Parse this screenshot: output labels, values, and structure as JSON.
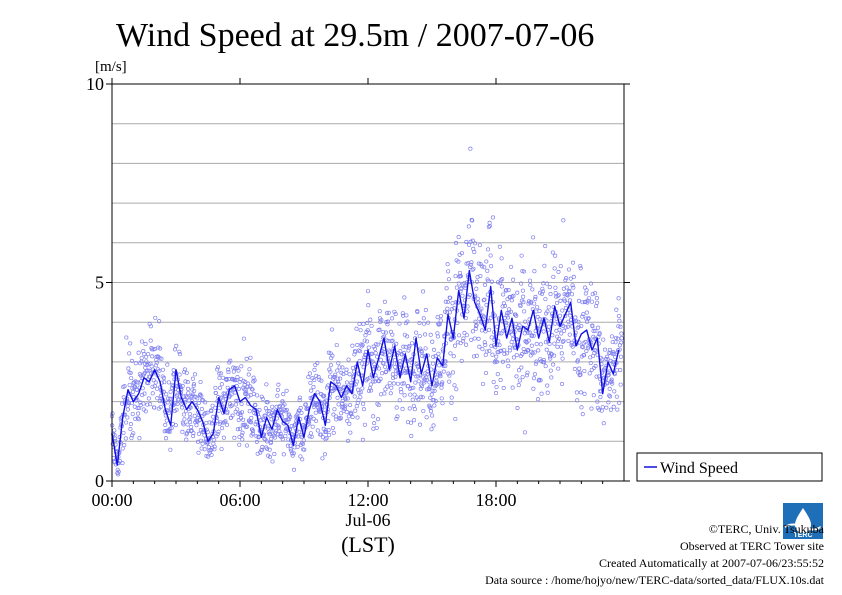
{
  "chart_data": {
    "type": "line",
    "title": "Wind Speed at 29.5m / 2007-07-06",
    "ylabel": "[m/s]",
    "ylim": [
      0,
      10
    ],
    "yticks": [
      "0",
      "5",
      "10"
    ],
    "y_gridlines": [
      1,
      2,
      3,
      4,
      5,
      6,
      7,
      8,
      9
    ],
    "xlim_hours": [
      0,
      24
    ],
    "xticks": [
      {
        "hour": 0,
        "label": "00:00"
      },
      {
        "hour": 6,
        "label": "06:00"
      },
      {
        "hour": 12,
        "label": "12:00"
      },
      {
        "hour": 18,
        "label": "18:00"
      }
    ],
    "xlabel_date": "Jul-06",
    "xlabel_tz": "(LST)",
    "legend": {
      "label": "Wind Speed",
      "position": "bottom-right, outside plot"
    },
    "series": [
      {
        "name": "Wind Speed",
        "color": "#1010e0",
        "scatter_color": "#8080f0",
        "x_hours": [
          0.0,
          0.25,
          0.5,
          0.75,
          1.0,
          1.25,
          1.5,
          1.75,
          2.0,
          2.25,
          2.5,
          2.75,
          3.0,
          3.25,
          3.5,
          3.75,
          4.0,
          4.25,
          4.5,
          4.75,
          5.0,
          5.25,
          5.5,
          5.75,
          6.0,
          6.25,
          6.5,
          6.75,
          7.0,
          7.25,
          7.5,
          7.75,
          8.0,
          8.25,
          8.5,
          8.75,
          9.0,
          9.25,
          9.5,
          9.75,
          10.0,
          10.25,
          10.5,
          10.75,
          11.0,
          11.25,
          11.5,
          11.75,
          12.0,
          12.25,
          12.5,
          12.75,
          13.0,
          13.25,
          13.5,
          13.75,
          14.0,
          14.25,
          14.5,
          14.75,
          15.0,
          15.25,
          15.5,
          15.75,
          16.0,
          16.25,
          16.5,
          16.75,
          17.0,
          17.25,
          17.5,
          17.75,
          18.0,
          18.25,
          18.5,
          18.75,
          19.0,
          19.25,
          19.5,
          19.75,
          20.0,
          20.25,
          20.5,
          20.75,
          21.0,
          21.25,
          21.5,
          21.75,
          22.0,
          22.25,
          22.5,
          22.75,
          23.0,
          23.25,
          23.5,
          23.75
        ],
        "values": [
          1.2,
          0.4,
          1.6,
          2.3,
          2.0,
          2.2,
          2.6,
          2.5,
          2.8,
          2.5,
          1.8,
          1.4,
          2.8,
          2.1,
          1.8,
          2.0,
          1.8,
          1.5,
          1.0,
          1.2,
          2.1,
          1.7,
          2.3,
          2.4,
          2.0,
          2.1,
          1.9,
          1.8,
          1.1,
          1.6,
          1.3,
          1.8,
          1.5,
          1.4,
          0.9,
          1.6,
          1.1,
          1.8,
          2.2,
          2.0,
          1.4,
          2.5,
          2.4,
          2.1,
          2.4,
          2.2,
          3.0,
          2.4,
          3.3,
          2.6,
          3.1,
          3.6,
          2.8,
          3.4,
          2.6,
          3.2,
          2.5,
          3.6,
          2.7,
          3.2,
          2.4,
          3.1,
          2.9,
          4.2,
          3.6,
          4.8,
          4.1,
          5.3,
          4.5,
          4.2,
          3.8,
          4.9,
          3.4,
          4.3,
          3.6,
          4.1,
          3.3,
          3.9,
          3.8,
          4.3,
          3.6,
          4.1,
          3.5,
          4.4,
          3.9,
          4.2,
          4.5,
          3.4,
          3.7,
          3.8,
          3.3,
          3.6,
          2.2,
          3.0,
          2.7,
          3.3
        ]
      }
    ]
  },
  "credits": {
    "line1": "©TERC, Univ. Tsukuba",
    "line2": "Observed at TERC Tower site",
    "line3": "Created Automatically at 2007-07-06/23:55:52",
    "line4": "Data source : /home/hojyo/new/TERC-data/sorted_data/FLUX.10s.dat",
    "logo_text": "TERC"
  }
}
